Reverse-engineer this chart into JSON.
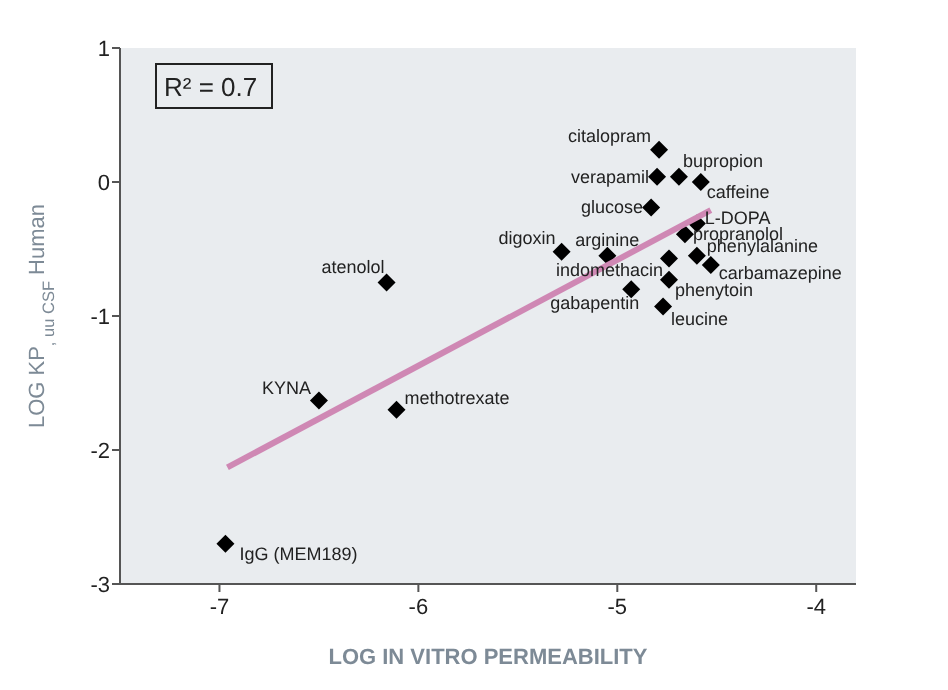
{
  "chart_data": {
    "type": "scatter",
    "xlabel": "LOG IN VITRO PERMEABILITY",
    "ylabel": "LOG KP$_{, uu CSF}$ Human",
    "xlim": [
      -7.5,
      -3.8
    ],
    "ylim": [
      -3,
      1
    ],
    "xticks": [
      -7,
      -6,
      -5,
      -4
    ],
    "yticks": [
      -3,
      -2,
      -1,
      0,
      1
    ],
    "grid": false,
    "series": [
      {
        "marker": "diamond",
        "color": "#000000",
        "x": [
          -4.79,
          -4.8,
          -4.69,
          -4.58,
          -4.83,
          -4.6,
          -4.66,
          -5.28,
          -5.05,
          -4.74,
          -4.6,
          -4.53,
          -4.74,
          -4.93,
          -4.77,
          -6.16,
          -6.5,
          -6.11,
          -6.97
        ],
        "values": [
          0.24,
          0.04,
          0.04,
          0.0,
          -0.19,
          -0.31,
          -0.39,
          -0.52,
          -0.55,
          -0.57,
          -0.55,
          -0.62,
          -0.73,
          -0.8,
          -0.93,
          -0.75,
          -1.63,
          -1.7,
          -2.7
        ]
      },
      {
        "type": "line",
        "marker": "none",
        "color": "#cf88b4",
        "x": [
          -6.96,
          -4.53
        ],
        "values": [
          -2.13,
          -0.21
        ]
      }
    ],
    "annotations": [
      {
        "text": "citalopram",
        "x": -4.79,
        "y": 0.24
      },
      {
        "text": "verapamil",
        "x": -4.8,
        "y": 0.04
      },
      {
        "text": "bupropion",
        "x": -4.69,
        "y": 0.04
      },
      {
        "text": "caffeine",
        "x": -4.58,
        "y": 0.0
      },
      {
        "text": "glucose",
        "x": -4.83,
        "y": -0.19
      },
      {
        "text": "L-DOPA",
        "x": -4.6,
        "y": -0.31
      },
      {
        "text": "propranolol",
        "x": -4.66,
        "y": -0.39
      },
      {
        "text": "digoxin",
        "x": -5.28,
        "y": -0.52
      },
      {
        "text": "arginine",
        "x": -5.05,
        "y": -0.55
      },
      {
        "text": "indomethacin",
        "x": -4.74,
        "y": -0.57
      },
      {
        "text": "phenylalanine",
        "x": -4.6,
        "y": -0.55
      },
      {
        "text": "carbamazepine",
        "x": -4.53,
        "y": -0.62
      },
      {
        "text": "phenytoin",
        "x": -4.74,
        "y": -0.73
      },
      {
        "text": "gabapentin",
        "x": -4.93,
        "y": -0.8
      },
      {
        "text": "leucine",
        "x": -4.77,
        "y": -0.93
      },
      {
        "text": "atenolol",
        "x": -6.16,
        "y": -0.75
      },
      {
        "text": "KYNA",
        "x": -6.5,
        "y": -1.63
      },
      {
        "text": "methotrexate",
        "x": -6.11,
        "y": -1.7
      },
      {
        "text": "IgG (MEM189)",
        "x": -6.97,
        "y": -2.7
      },
      "R² = 0.7"
    ]
  }
}
